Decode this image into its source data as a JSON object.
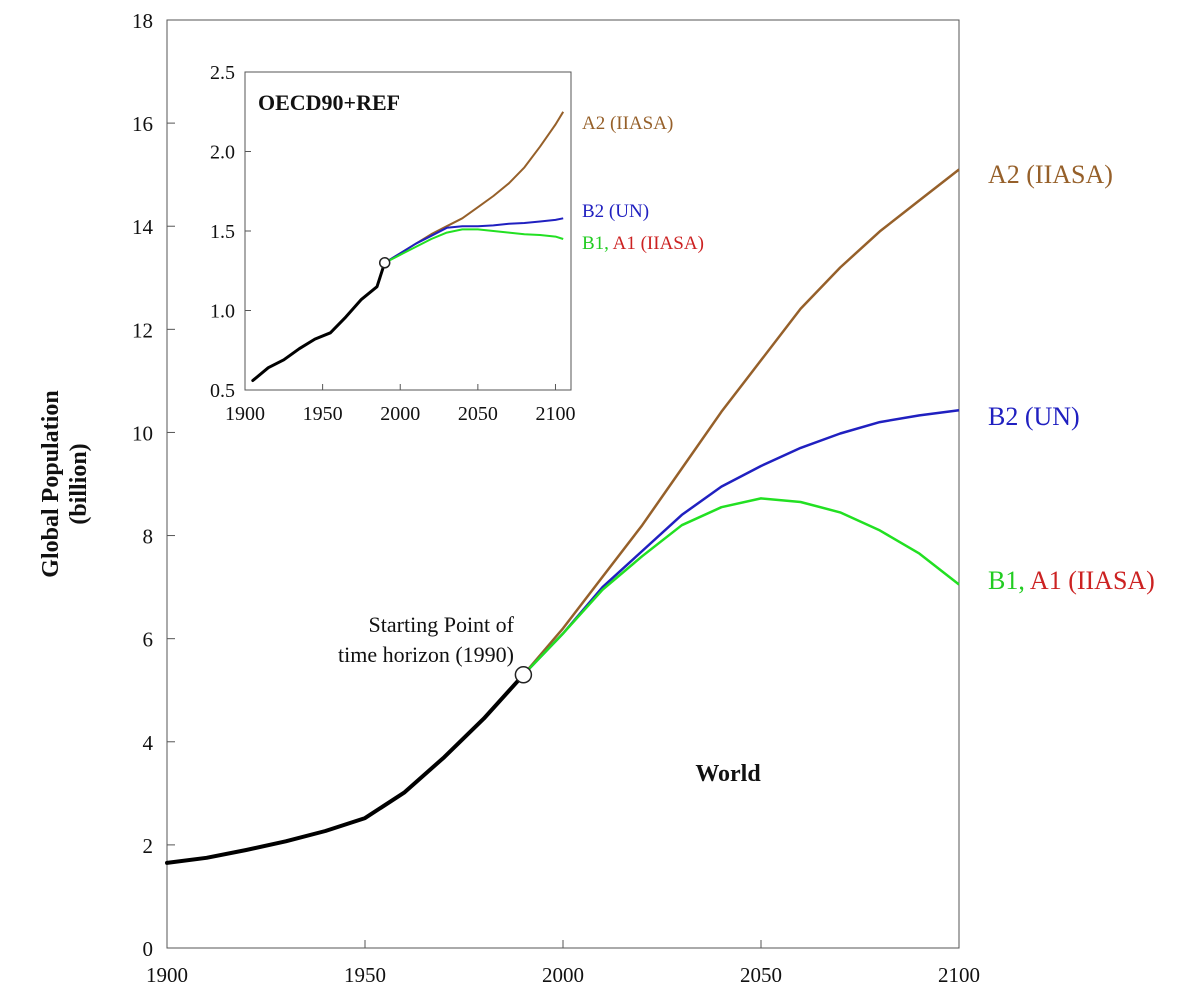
{
  "chart_data": [
    {
      "id": "main",
      "type": "line",
      "ylabel_line1": "Global Population",
      "ylabel_line2": "(billion)",
      "xlim": [
        1900,
        2100
      ],
      "ylim": [
        0,
        18
      ],
      "xticks": [
        1900,
        1950,
        2000,
        2050,
        2100
      ],
      "yticks": [
        0,
        2,
        4,
        6,
        8,
        10,
        12,
        14,
        16,
        18
      ],
      "region_label": "World",
      "annotation_line1": "Starting Point of",
      "annotation_line2": "time horizon (1990)",
      "start_point": {
        "x": 1990,
        "y": 5.3
      },
      "historical": {
        "color": "#000000",
        "x": [
          1900,
          1910,
          1920,
          1930,
          1940,
          1950,
          1960,
          1970,
          1980,
          1990
        ],
        "y": [
          1.65,
          1.75,
          1.9,
          2.07,
          2.27,
          2.52,
          3.02,
          3.7,
          4.45,
          5.3
        ]
      },
      "series": [
        {
          "name": "A2 (IIASA)",
          "color": "#96602a",
          "x": [
            1990,
            2000,
            2010,
            2020,
            2030,
            2040,
            2050,
            2060,
            2070,
            2080,
            2090,
            2100
          ],
          "y": [
            5.3,
            6.2,
            7.2,
            8.2,
            9.3,
            10.4,
            11.4,
            12.4,
            13.2,
            13.9,
            14.5,
            15.1
          ]
        },
        {
          "name": "B2 (UN)",
          "color": "#2020c0",
          "x": [
            1990,
            2000,
            2010,
            2020,
            2030,
            2040,
            2050,
            2060,
            2070,
            2080,
            2090,
            2100
          ],
          "y": [
            5.3,
            6.1,
            7.0,
            7.7,
            8.4,
            8.95,
            9.35,
            9.7,
            9.98,
            10.2,
            10.33,
            10.43
          ]
        },
        {
          "name": "B1, A1 (IIASA)",
          "label_parts": [
            {
              "text": "B1, ",
              "color": "#22cc22"
            },
            {
              "text": "A1 (IIASA)",
              "color": "#cc2222"
            }
          ],
          "color": "#22e022",
          "x": [
            1990,
            2000,
            2010,
            2020,
            2030,
            2040,
            2050,
            2060,
            2070,
            2080,
            2090,
            2100
          ],
          "y": [
            5.3,
            6.1,
            6.95,
            7.6,
            8.2,
            8.55,
            8.72,
            8.65,
            8.45,
            8.1,
            7.65,
            7.05
          ]
        }
      ]
    },
    {
      "id": "inset",
      "type": "line",
      "title": "OECD90+REF",
      "xlim": [
        1900,
        2110
      ],
      "ylim": [
        0.5,
        2.5
      ],
      "xticks": [
        1900,
        1950,
        2000,
        2050,
        2100
      ],
      "yticks": [
        0.5,
        1.0,
        1.5,
        2.0,
        2.5
      ],
      "ytick_labels": [
        "0.5",
        "1.0",
        "1.5",
        "2.0",
        "2.5"
      ],
      "start_point": {
        "x": 1990,
        "y": 1.3
      },
      "historical": {
        "color": "#000000",
        "x": [
          1905,
          1915,
          1925,
          1935,
          1945,
          1955,
          1965,
          1975,
          1985,
          1990
        ],
        "y": [
          0.56,
          0.64,
          0.69,
          0.76,
          0.82,
          0.86,
          0.96,
          1.07,
          1.15,
          1.3
        ]
      },
      "series": [
        {
          "name": "A2 (IIASA)",
          "color": "#96602a",
          "x": [
            1990,
            2000,
            2010,
            2020,
            2030,
            2040,
            2050,
            2060,
            2070,
            2080,
            2090,
            2100,
            2105
          ],
          "y": [
            1.3,
            1.36,
            1.42,
            1.48,
            1.53,
            1.58,
            1.65,
            1.72,
            1.8,
            1.9,
            2.03,
            2.17,
            2.25
          ]
        },
        {
          "name": "B2 (UN)",
          "color": "#2020c0",
          "x": [
            1990,
            2000,
            2010,
            2020,
            2030,
            2040,
            2050,
            2060,
            2070,
            2080,
            2090,
            2100,
            2105
          ],
          "y": [
            1.3,
            1.36,
            1.42,
            1.47,
            1.52,
            1.53,
            1.53,
            1.535,
            1.545,
            1.55,
            1.56,
            1.57,
            1.58
          ]
        },
        {
          "name": "B1, A1 (IIASA)",
          "label_parts": [
            {
              "text": "B1, ",
              "color": "#22cc22"
            },
            {
              "text": "A1 (IIASA)",
              "color": "#cc2222"
            }
          ],
          "color": "#22e022",
          "x": [
            1990,
            2000,
            2010,
            2020,
            2030,
            2040,
            2050,
            2060,
            2070,
            2080,
            2090,
            2100,
            2105
          ],
          "y": [
            1.3,
            1.35,
            1.4,
            1.45,
            1.49,
            1.51,
            1.51,
            1.5,
            1.49,
            1.48,
            1.475,
            1.465,
            1.45
          ]
        }
      ]
    }
  ]
}
